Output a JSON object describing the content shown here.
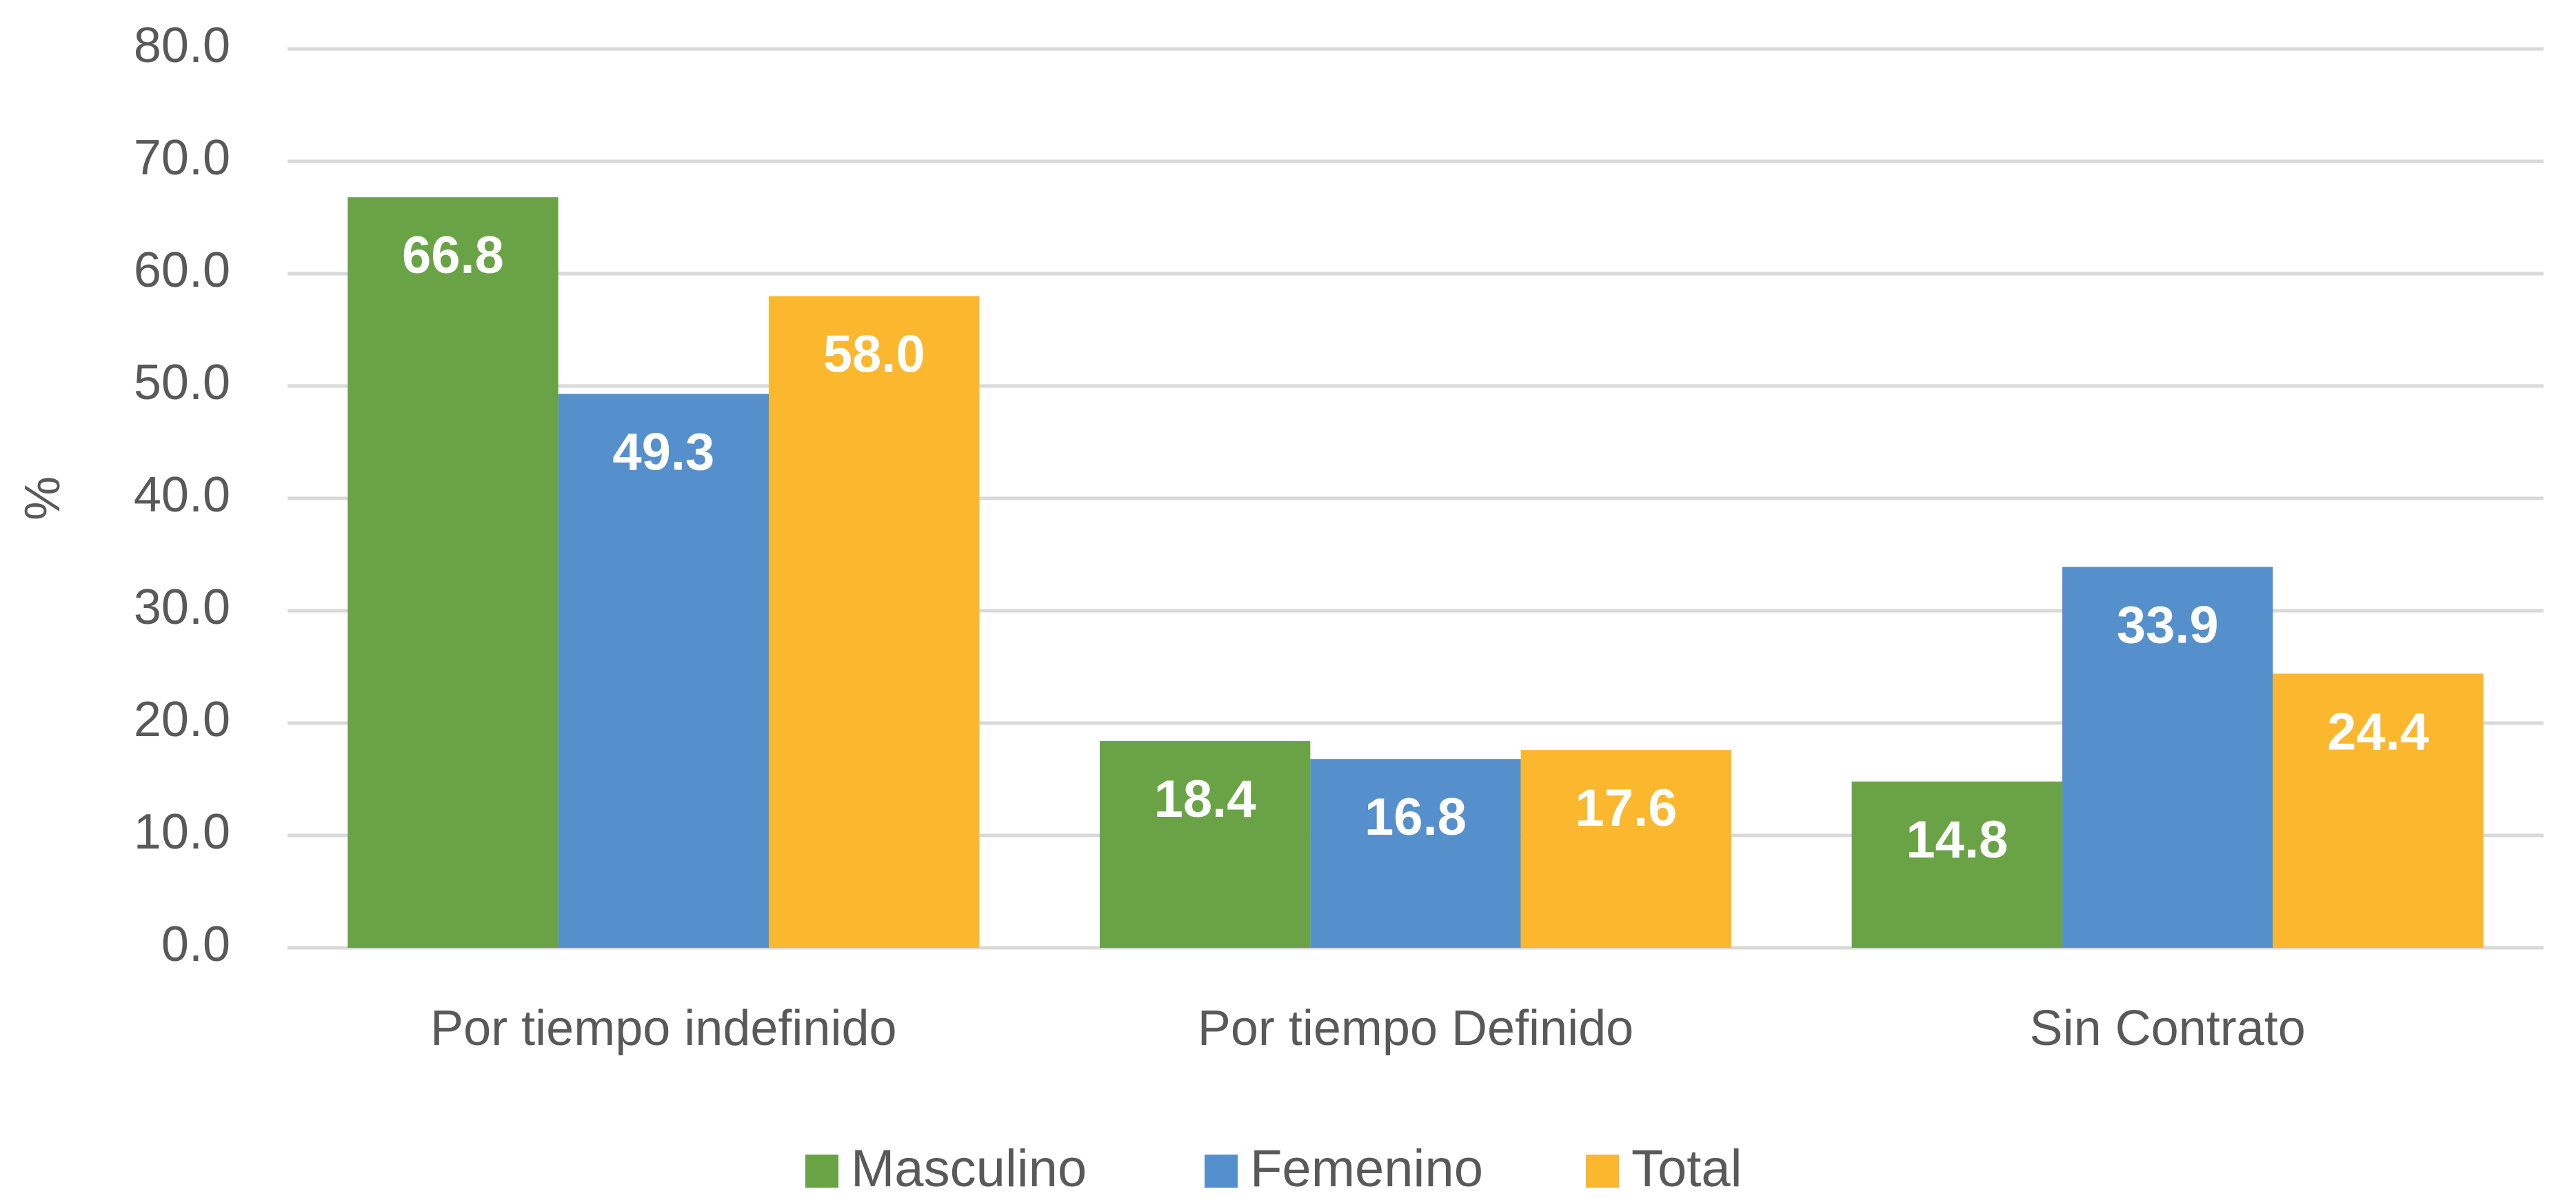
{
  "chart_data": {
    "type": "bar",
    "y_label": "%",
    "categories": [
      "Por tiempo indefinido",
      "Por tiempo Definido",
      "Sin Contrato"
    ],
    "series": [
      {
        "name": "Masculino",
        "color": "#6aa345",
        "values": [
          66.8,
          18.4,
          14.8
        ],
        "value_labels": [
          "66.8",
          "18.4",
          "14.8"
        ]
      },
      {
        "name": "Femenino",
        "color": "#5590cc",
        "values": [
          49.3,
          16.8,
          33.9
        ],
        "value_labels": [
          "49.3",
          "16.8",
          "33.9"
        ]
      },
      {
        "name": "Total",
        "color": "#fbb72e",
        "values": [
          58,
          17.6,
          24.4
        ],
        "value_labels": [
          "58.0",
          "17.6",
          "24.4"
        ]
      }
    ],
    "ylim": [
      0,
      80
    ],
    "yticks": [
      {
        "value": 0,
        "label": "0.0"
      },
      {
        "value": 10,
        "label": "10.0"
      },
      {
        "value": 20,
        "label": "20.0"
      },
      {
        "value": 30,
        "label": "30.0"
      },
      {
        "value": 40,
        "label": "40.0"
      },
      {
        "value": 50,
        "label": "50.0"
      },
      {
        "value": 60,
        "label": "60.0"
      },
      {
        "value": 70,
        "label": "70.0"
      },
      {
        "value": 80,
        "label": "80.0"
      }
    ],
    "grid": true,
    "legend": "bottom"
  }
}
